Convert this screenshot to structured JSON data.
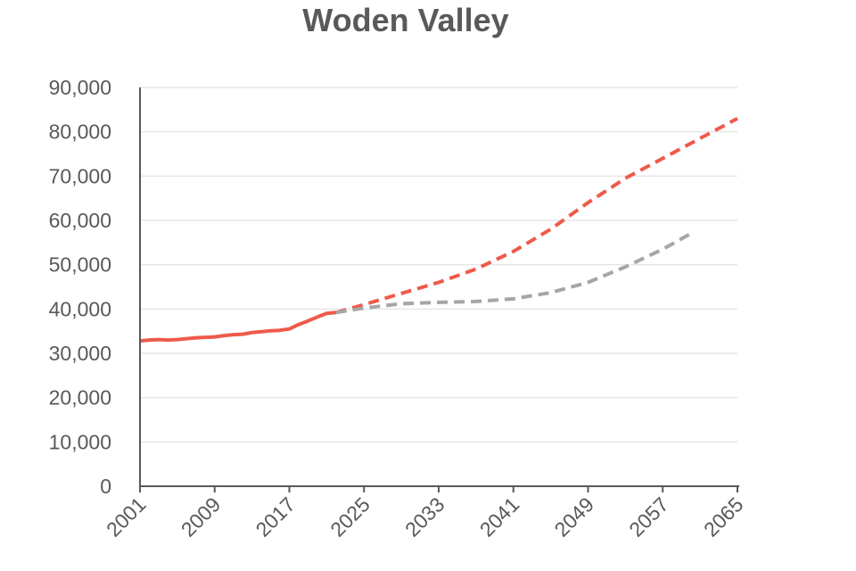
{
  "title": "Woden Valley",
  "colors": {
    "actual": "#ee5a4a",
    "projection_high": "#ee5a4a",
    "projection_low": "#a6a6a6",
    "axis": "#595959",
    "grid": "#e6e6e6"
  },
  "chart_data": {
    "type": "line",
    "title": "Woden Valley",
    "xlabel": "",
    "ylabel": "",
    "xlim": [
      2001,
      2065
    ],
    "ylim": [
      0,
      90000
    ],
    "y_ticks": [
      0,
      10000,
      20000,
      30000,
      40000,
      50000,
      60000,
      70000,
      80000,
      90000
    ],
    "y_tick_labels": [
      "0",
      "10,000",
      "20,000",
      "30,000",
      "40,000",
      "50,000",
      "60,000",
      "70,000",
      "80,000",
      "90,000"
    ],
    "x_ticks": [
      2001,
      2009,
      2017,
      2025,
      2033,
      2041,
      2049,
      2057,
      2065
    ],
    "x_tick_labels": [
      "2001",
      "2009",
      "2017",
      "2025",
      "2033",
      "2041",
      "2049",
      "2057",
      "2065"
    ],
    "grid": "horizontal",
    "legend": "none",
    "series": [
      {
        "style": "solid",
        "color": "#ee5a4a",
        "x": [
          2001,
          2002,
          2003,
          2004,
          2005,
          2006,
          2007,
          2008,
          2009,
          2010,
          2011,
          2012,
          2013,
          2014,
          2015,
          2016,
          2017,
          2018,
          2019,
          2020,
          2021,
          2022
        ],
        "y": [
          32800,
          33000,
          33100,
          33000,
          33100,
          33300,
          33500,
          33600,
          33700,
          34000,
          34200,
          34300,
          34700,
          34900,
          35100,
          35200,
          35500,
          36500,
          37300,
          38200,
          39000,
          39200
        ]
      },
      {
        "style": "dashed",
        "color": "#ee5a4a",
        "x": [
          2022,
          2025,
          2029,
          2033,
          2037,
          2041,
          2045,
          2049,
          2053,
          2057,
          2061,
          2065
        ],
        "y": [
          39200,
          41000,
          43500,
          46000,
          49000,
          53000,
          58000,
          64000,
          69500,
          74000,
          78500,
          83000
        ]
      },
      {
        "style": "dashed",
        "color": "#a6a6a6",
        "x": [
          2022,
          2025,
          2029,
          2033,
          2037,
          2041,
          2045,
          2049,
          2053,
          2057,
          2060
        ],
        "y": [
          39200,
          40200,
          41200,
          41500,
          41700,
          42300,
          43700,
          46000,
          49500,
          53500,
          57000
        ]
      }
    ]
  }
}
